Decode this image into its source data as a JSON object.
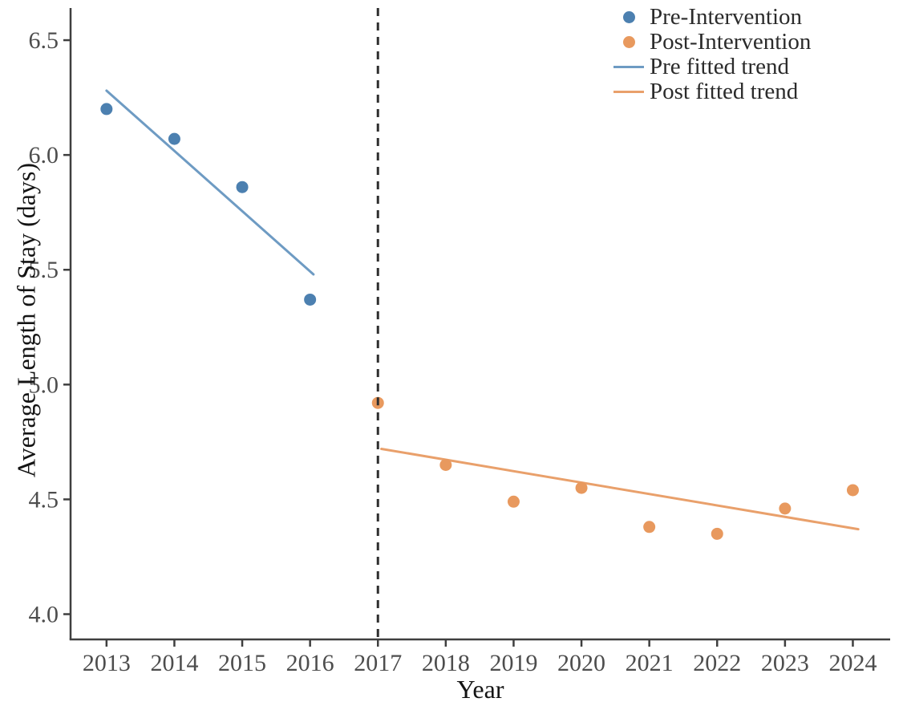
{
  "figure": {
    "background": "#ffffff"
  },
  "chart_data": {
    "type": "scatter",
    "title": "",
    "xlabel": "Year",
    "ylabel": "Average Length of Stay (days)",
    "xlim": [
      2012.47,
      2024.55
    ],
    "ylim": [
      3.89,
      6.64
    ],
    "xticks": [
      2013,
      2014,
      2015,
      2016,
      2017,
      2018,
      2019,
      2020,
      2021,
      2022,
      2023,
      2024
    ],
    "yticks": [
      4.0,
      4.5,
      5.0,
      5.5,
      6.0,
      6.5
    ],
    "grid": false,
    "intervention_line": {
      "x": 2017,
      "style": "dashed",
      "color": "#2e2e2e"
    },
    "series": [
      {
        "name": "Pre-Intervention",
        "kind": "points",
        "color": "#4c80b0",
        "x": [
          2013,
          2014,
          2015,
          2016
        ],
        "y": [
          6.2,
          6.07,
          5.86,
          5.37
        ]
      },
      {
        "name": "Post-Intervention",
        "kind": "points",
        "color": "#e8995e",
        "x": [
          2017,
          2018,
          2019,
          2020,
          2021,
          2022,
          2023,
          2024
        ],
        "y": [
          4.92,
          4.65,
          4.49,
          4.55,
          4.38,
          4.35,
          4.46,
          4.54
        ]
      },
      {
        "name": "Pre fitted trend",
        "kind": "line",
        "color": "#6e9bc3",
        "x": [
          2013.0,
          2016.05
        ],
        "y": [
          6.28,
          5.48
        ]
      },
      {
        "name": "Post fitted trend",
        "kind": "line",
        "color": "#e9a06b",
        "x": [
          2017.05,
          2024.08
        ],
        "y": [
          4.72,
          4.37
        ]
      }
    ],
    "legend": {
      "position": "top-right",
      "entries": [
        {
          "label": "Pre-Intervention",
          "marker": "point",
          "color": "#4c80b0"
        },
        {
          "label": "Post-Intervention",
          "marker": "point",
          "color": "#e8995e"
        },
        {
          "label": "Pre fitted trend",
          "marker": "line",
          "color": "#6e9bc3"
        },
        {
          "label": "Post fitted trend",
          "marker": "line",
          "color": "#e9a06b"
        }
      ]
    },
    "axis_color": "#3f3f3f",
    "tick_label_color": "#4d4d4d",
    "label_color": "#141414"
  }
}
